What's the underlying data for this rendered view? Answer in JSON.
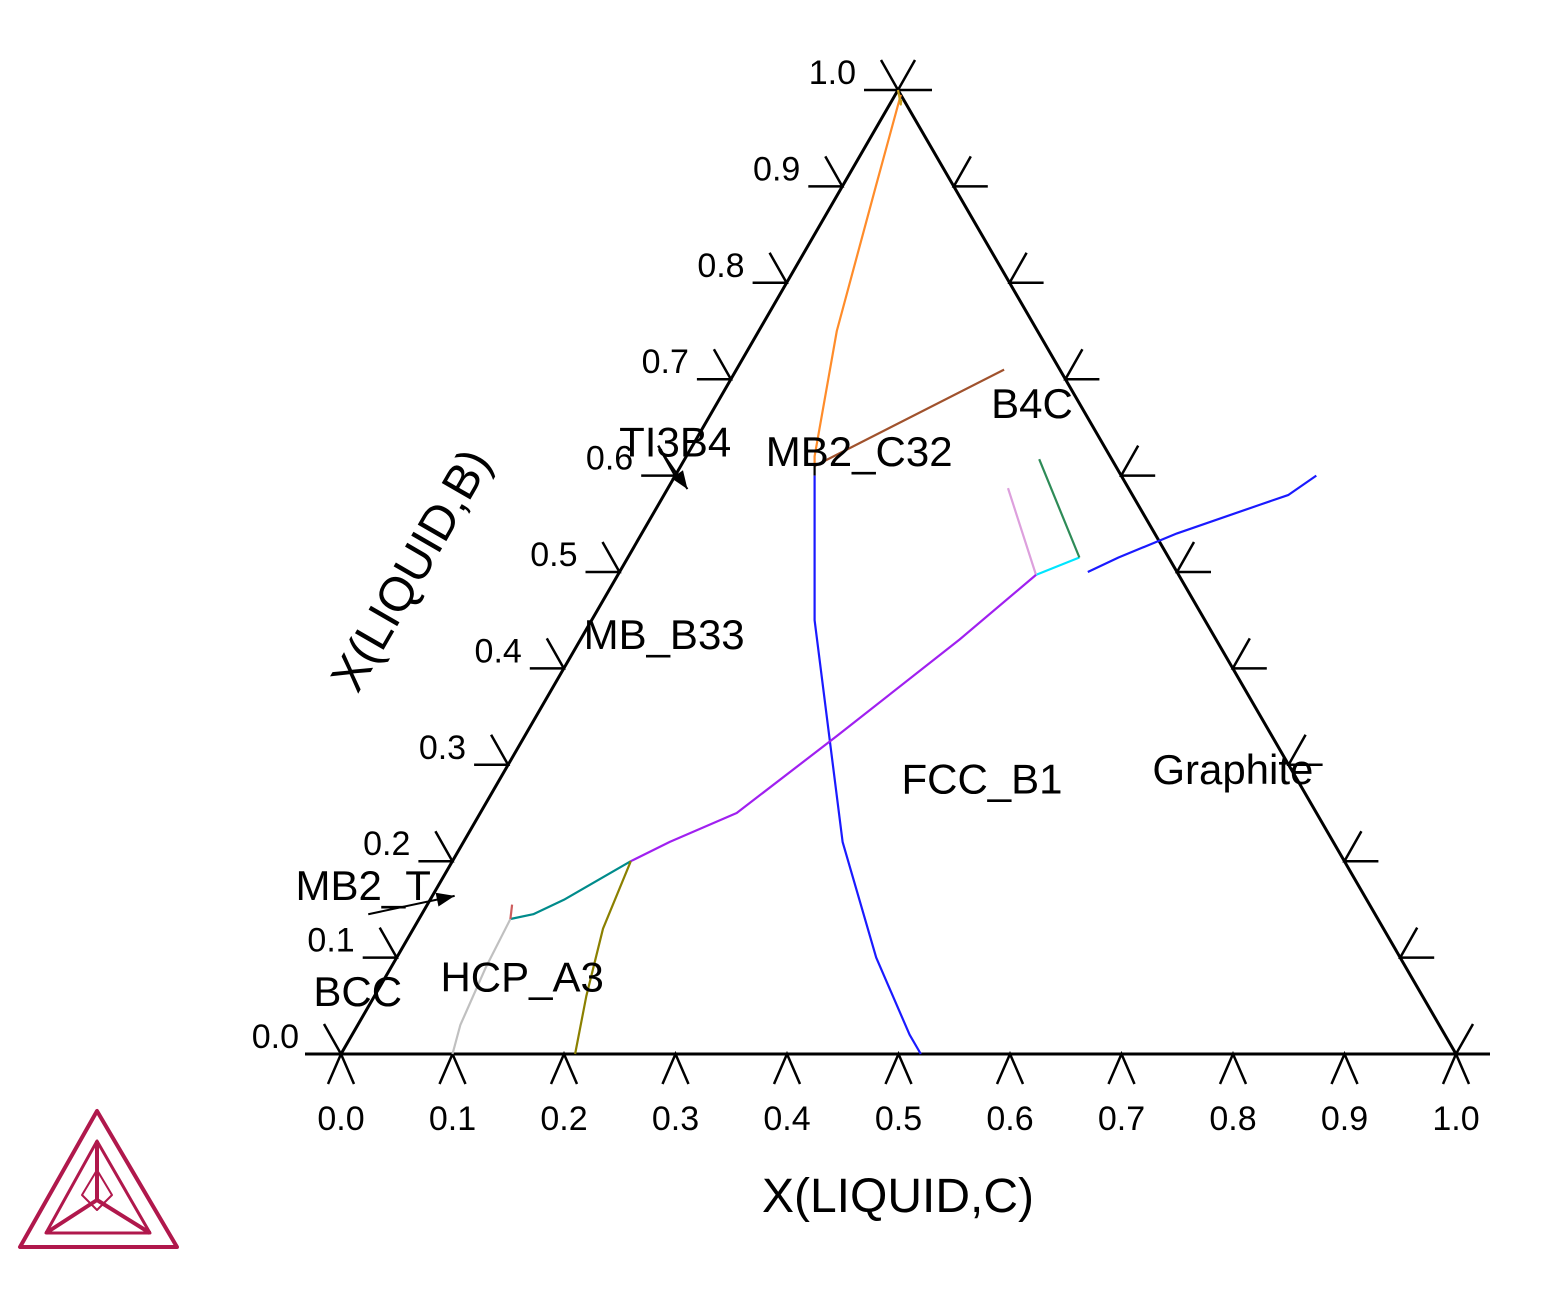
{
  "chart_data": {
    "type": "ternary-line",
    "xlabel": "X(LIQUID,C)",
    "ylabel": "X(LIQUID,B)",
    "axis_range": [
      0,
      1
    ],
    "x_ticks": [
      "0.0",
      "0.1",
      "0.2",
      "0.3",
      "0.4",
      "0.5",
      "0.6",
      "0.7",
      "0.8",
      "0.9",
      "1.0"
    ],
    "y_ticks": [
      "0.0",
      "0.1",
      "0.2",
      "0.3",
      "0.4",
      "0.5",
      "0.6",
      "0.7",
      "0.8",
      "0.9",
      "1.0"
    ],
    "grid": false,
    "regions": [
      {
        "name": "B4C",
        "c": 0.29,
        "b": 0.66
      },
      {
        "name": "MB2_C32",
        "c": 0.16,
        "b": 0.61
      },
      {
        "name": "TI3B4",
        "c": -0.01,
        "b": 0.62
      },
      {
        "name": "MB_B33",
        "c": 0.08,
        "b": 0.42
      },
      {
        "name": "FCC_B1",
        "c": 0.44,
        "b": 0.27
      },
      {
        "name": "Graphite",
        "c": 0.66,
        "b": 0.28
      },
      {
        "name": "MB2_T",
        "c": -0.06,
        "b": 0.16
      },
      {
        "name": "HCP_A3",
        "c": 0.13,
        "b": 0.065
      },
      {
        "name": "BCC",
        "c": -0.01,
        "b": 0.05
      }
    ],
    "arrows": [
      {
        "label": "TI3B4",
        "from": [
          -0.027,
          0.627
        ],
        "to": [
          0.018,
          0.586
        ]
      },
      {
        "label": "MB2_T",
        "from": [
          -0.048,
          0.145
        ],
        "to": [
          0.02,
          0.164
        ]
      }
    ],
    "series": [
      {
        "color": "#ff8c2a",
        "points": [
          [
            0.005,
            0.995
          ],
          [
            0.03,
            0.9
          ],
          [
            0.07,
            0.75
          ],
          [
            0.115,
            0.62
          ],
          [
            0.12,
            0.61
          ]
        ]
      },
      {
        "color": "#c8a020",
        "points": [
          [
            0.0,
            1.0
          ],
          [
            0.01,
            0.985
          ],
          [
            0.008,
            0.99
          ]
        ]
      },
      {
        "color": "#a0522d",
        "points": [
          [
            0.12,
            0.61
          ],
          [
            0.24,
            0.71
          ]
        ]
      },
      {
        "color": "#1a1aff",
        "points": [
          [
            0.42,
            0.5
          ],
          [
            0.44,
            0.515
          ],
          [
            0.48,
            0.54
          ],
          [
            0.54,
            0.57
          ],
          [
            0.56,
            0.58
          ],
          [
            0.575,
            0.6
          ]
        ]
      },
      {
        "color": "#000000",
        "points": [
          [
            0.12,
            0.61
          ],
          [
            0.125,
            0.6
          ]
        ]
      },
      {
        "color": "#1a1aff",
        "points": [
          [
            0.125,
            0.6
          ],
          [
            0.2,
            0.45
          ],
          [
            0.34,
            0.22
          ],
          [
            0.43,
            0.1
          ],
          [
            0.5,
            0.02
          ],
          [
            0.52,
            0.0
          ]
        ]
      },
      {
        "color": "#00e5ff",
        "points": [
          [
            0.375,
            0.497
          ],
          [
            0.405,
            0.515
          ]
        ]
      },
      {
        "color": "#2e8b57",
        "points": [
          [
            0.405,
            0.515
          ],
          [
            0.318,
            0.617
          ]
        ]
      },
      {
        "color": "#dda0dd",
        "points": [
          [
            0.375,
            0.497
          ],
          [
            0.305,
            0.587
          ]
        ]
      },
      {
        "color": "#a020f0",
        "points": [
          [
            0.375,
            0.497
          ],
          [
            0.34,
            0.43
          ],
          [
            0.28,
            0.33
          ],
          [
            0.23,
            0.25
          ],
          [
            0.185,
            0.22
          ],
          [
            0.16,
            0.2
          ]
        ]
      },
      {
        "color": "#008b8b",
        "points": [
          [
            0.16,
            0.2
          ],
          [
            0.12,
            0.16
          ],
          [
            0.1,
            0.145
          ],
          [
            0.082,
            0.14
          ]
        ]
      },
      {
        "color": "#8b8000",
        "points": [
          [
            0.16,
            0.2
          ],
          [
            0.17,
            0.13
          ],
          [
            0.19,
            0.06
          ],
          [
            0.21,
            0.0
          ]
        ]
      },
      {
        "color": "#c0c0c0",
        "points": [
          [
            0.082,
            0.14
          ],
          [
            0.085,
            0.09
          ],
          [
            0.092,
            0.03
          ],
          [
            0.1,
            0.0
          ]
        ]
      },
      {
        "color": "#cd5c5c",
        "points": [
          [
            0.082,
            0.14
          ],
          [
            0.076,
            0.155
          ]
        ]
      }
    ]
  }
}
